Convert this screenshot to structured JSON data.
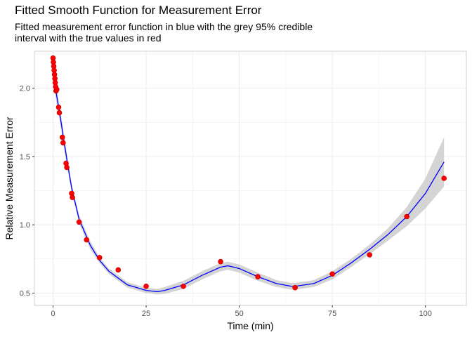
{
  "chart_data": {
    "type": "scatter",
    "title": "Fitted Smooth Function for Measurement Error",
    "subtitle": [
      "Fitted measurement error function in blue with the grey 95% credible",
      "interval with the true values in red"
    ],
    "xlabel": "Time (min)",
    "ylabel": "Relative Measurement Error",
    "xlim": [
      -5,
      111
    ],
    "ylim": [
      0.41,
      2.27
    ],
    "x_ticks": [
      0,
      25,
      50,
      75,
      100
    ],
    "x_tick_labels": [
      "0",
      "25",
      "50",
      "75",
      "100"
    ],
    "y_ticks": [
      0.5,
      1.0,
      1.5,
      2.0
    ],
    "y_tick_labels": [
      "0.5",
      "1.0",
      "1.5",
      "2.0"
    ],
    "grid": true,
    "legend": "none",
    "colors": {
      "fit_line": "#0000ff",
      "ribbon": "#cccccc",
      "points": "#ff0000",
      "point_outline": "#cc0000",
      "grid": "#ebebeb",
      "panel_border": "#cccccc"
    },
    "series": [
      {
        "type": "scatter",
        "x": [
          0.0,
          0.1,
          0.2,
          0.3,
          0.4,
          0.5,
          0.6,
          0.7,
          0.8,
          1.0,
          1.5,
          1.7,
          2.5,
          2.7,
          3.5,
          3.7,
          5.0,
          5.2,
          7.0,
          9.0,
          12.5,
          17.5,
          25,
          35,
          45,
          55,
          65,
          75,
          85,
          95,
          105
        ],
        "y": [
          2.22,
          2.19,
          2.16,
          2.13,
          2.1,
          2.07,
          2.04,
          2.01,
          1.98,
          1.99,
          1.86,
          1.82,
          1.64,
          1.6,
          1.45,
          1.42,
          1.23,
          1.2,
          1.02,
          0.89,
          0.76,
          0.67,
          0.55,
          0.55,
          0.73,
          0.62,
          0.54,
          0.64,
          0.78,
          1.06,
          1.34
        ]
      },
      {
        "type": "line",
        "x": [
          0,
          1,
          2,
          3,
          4,
          5,
          7,
          10,
          12.5,
          15,
          20,
          25,
          28,
          30,
          35,
          40,
          45,
          47,
          50,
          55,
          60,
          64,
          65,
          70,
          75,
          80,
          85,
          90,
          95,
          100,
          105
        ],
        "y": [
          2.12,
          1.94,
          1.78,
          1.6,
          1.43,
          1.27,
          1.04,
          0.85,
          0.74,
          0.66,
          0.56,
          0.52,
          0.51,
          0.52,
          0.56,
          0.63,
          0.69,
          0.7,
          0.68,
          0.62,
          0.57,
          0.55,
          0.55,
          0.57,
          0.63,
          0.72,
          0.82,
          0.93,
          1.06,
          1.23,
          1.46
        ],
        "lower": [
          2.05,
          1.88,
          1.73,
          1.55,
          1.39,
          1.24,
          1.01,
          0.82,
          0.72,
          0.64,
          0.54,
          0.5,
          0.49,
          0.495,
          0.53,
          0.6,
          0.66,
          0.67,
          0.65,
          0.59,
          0.545,
          0.525,
          0.525,
          0.545,
          0.6,
          0.69,
          0.785,
          0.885,
          0.99,
          1.12,
          1.28
        ],
        "upper": [
          2.19,
          2.0,
          1.83,
          1.65,
          1.47,
          1.3,
          1.07,
          0.88,
          0.76,
          0.68,
          0.58,
          0.54,
          0.53,
          0.545,
          0.59,
          0.66,
          0.72,
          0.73,
          0.71,
          0.65,
          0.595,
          0.575,
          0.575,
          0.595,
          0.66,
          0.75,
          0.855,
          0.975,
          1.13,
          1.34,
          1.64
        ]
      }
    ]
  }
}
